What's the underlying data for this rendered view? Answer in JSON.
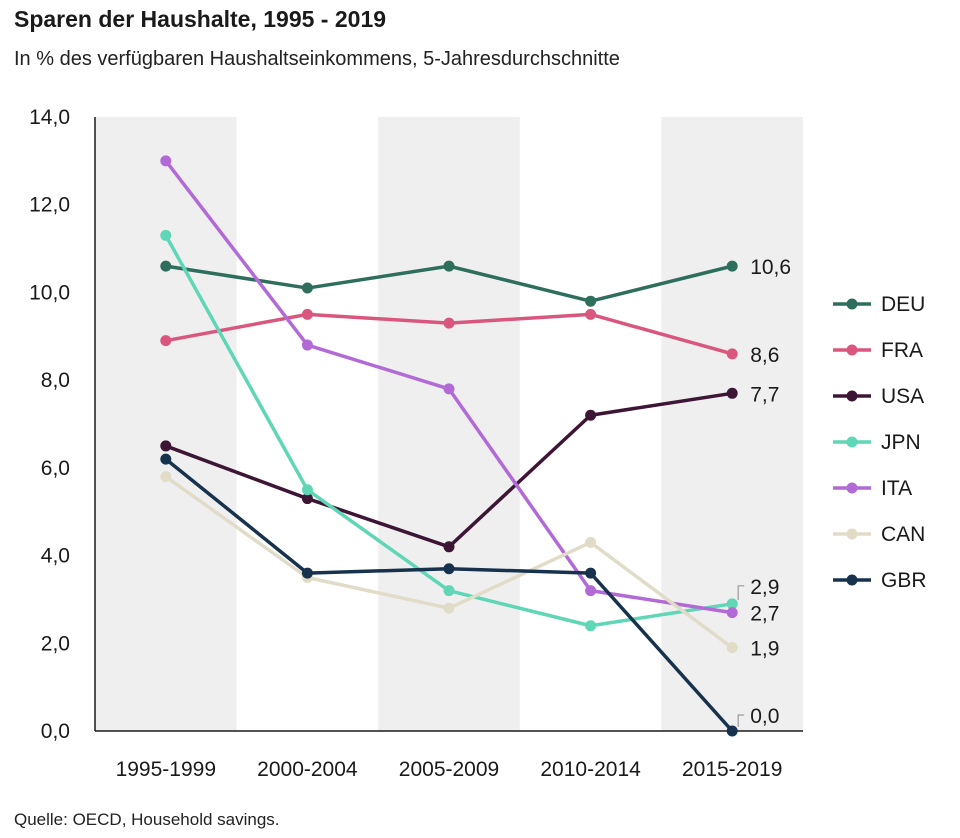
{
  "title": "Sparen der Haushalte, 1995 - 2019",
  "subtitle": "In % des verfügbaren Haushaltseinkommens, 5-Jahresdurchschnitte",
  "source": "Quelle: OECD, Household savings.",
  "chart_data": {
    "type": "line",
    "categories": [
      "1995-1999",
      "2000-2004",
      "2005-2009",
      "2010-2014",
      "2015-2019"
    ],
    "ylim": [
      0,
      14
    ],
    "yticks": [
      "0,0",
      "2,0",
      "4,0",
      "6,0",
      "8,0",
      "10,0",
      "12,0",
      "14,0"
    ],
    "grid": false,
    "shaded_bands": [
      0,
      2,
      4
    ],
    "legend_position": "right",
    "series": [
      {
        "name": "DEU",
        "color": "#2e6e5c",
        "values": [
          10.6,
          10.1,
          10.6,
          9.8,
          10.6
        ],
        "end_label": "10,6"
      },
      {
        "name": "FRA",
        "color": "#d9577e",
        "values": [
          8.9,
          9.5,
          9.3,
          9.5,
          8.6
        ],
        "end_label": "8,6"
      },
      {
        "name": "USA",
        "color": "#3d1535",
        "values": [
          6.5,
          5.3,
          4.2,
          7.2,
          7.7
        ],
        "end_label": "7,7"
      },
      {
        "name": "JPN",
        "color": "#5fd6b5",
        "values": [
          11.3,
          5.5,
          3.2,
          2.4,
          2.9
        ],
        "end_label": "2,9"
      },
      {
        "name": "ITA",
        "color": "#b26ad6",
        "values": [
          13.0,
          8.8,
          7.8,
          3.2,
          2.7
        ],
        "end_label": "2,7"
      },
      {
        "name": "CAN",
        "color": "#e0dcc8",
        "values": [
          5.8,
          3.5,
          2.8,
          4.3,
          1.9
        ],
        "end_label": "1,9"
      },
      {
        "name": "GBR",
        "color": "#17324d",
        "values": [
          6.2,
          3.6,
          3.7,
          3.6,
          0.0
        ],
        "end_label": "0,0"
      }
    ]
  }
}
